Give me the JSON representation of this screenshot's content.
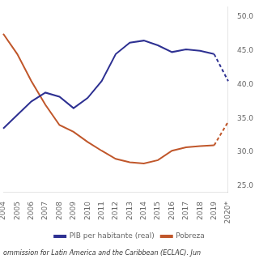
{
  "chart_data": {
    "type": "line",
    "categories": [
      "2004",
      "2005",
      "2006",
      "2007",
      "2008",
      "2009",
      "2010",
      "2011",
      "2012",
      "2013",
      "2014",
      "2015",
      "2016",
      "2017",
      "2018",
      "2019",
      "2020*"
    ],
    "series": [
      {
        "name": "PIB per habitante (real)",
        "color": "#2e3192",
        "values": [
          33.5,
          35.5,
          37.5,
          38.8,
          38.2,
          36.5,
          38.0,
          40.5,
          44.5,
          46.2,
          46.5,
          45.8,
          44.8,
          45.2,
          45.0,
          44.5,
          40.5
        ]
      },
      {
        "name": "Pobreza",
        "color": "#c0572b",
        "values": [
          47.5,
          44.5,
          40.5,
          37.0,
          34.0,
          33.0,
          31.5,
          30.2,
          29.0,
          28.5,
          28.3,
          28.8,
          30.2,
          30.7,
          30.9,
          31.0,
          34.5
        ]
      }
    ],
    "ylim": [
      24.0,
      51.5
    ],
    "yticks": [
      {
        "value": 25,
        "label": "25.0"
      },
      {
        "value": 30,
        "label": "30.0"
      },
      {
        "value": 35,
        "label": "35.0"
      },
      {
        "value": 40,
        "label": "40.0"
      },
      {
        "value": 45,
        "label": "45.0"
      },
      {
        "value": 50,
        "label": "50.0"
      }
    ],
    "grid": false,
    "legend": "bottom",
    "annotations": [
      "ommission for Latin America and the Caribbean (ECLAC). Jun"
    ]
  }
}
